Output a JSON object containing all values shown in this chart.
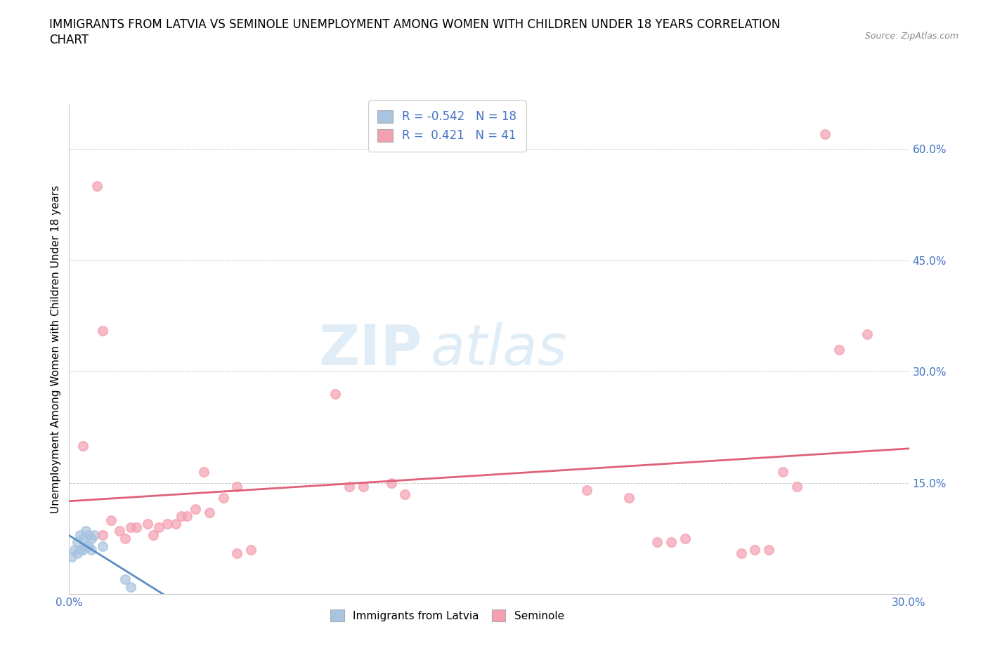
{
  "title_line1": "IMMIGRANTS FROM LATVIA VS SEMINOLE UNEMPLOYMENT AMONG WOMEN WITH CHILDREN UNDER 18 YEARS CORRELATION",
  "title_line2": "CHART",
  "source": "Source: ZipAtlas.com",
  "ylabel": "Unemployment Among Women with Children Under 18 years",
  "watermark": "ZIPatlas",
  "xlim": [
    0.0,
    0.3
  ],
  "ylim": [
    0.0,
    0.66
  ],
  "yticks_right": [
    0.15,
    0.3,
    0.45,
    0.6
  ],
  "ytick_right_labels": [
    "15.0%",
    "30.0%",
    "45.0%",
    "60.0%"
  ],
  "latvia_color": "#a8c4e0",
  "seminole_color": "#f4a0b0",
  "latvia_line_color": "#5b8ec4",
  "seminole_line_color": "#e0607a",
  "legend_R_color": "#4472c4",
  "latvia_R": -0.542,
  "latvia_N": 18,
  "seminole_R": 0.421,
  "seminole_N": 41,
  "latvia_points_x": [
    0.001,
    0.002,
    0.003,
    0.003,
    0.004,
    0.004,
    0.005,
    0.005,
    0.006,
    0.006,
    0.007,
    0.007,
    0.008,
    0.008,
    0.009,
    0.012,
    0.02,
    0.022
  ],
  "latvia_points_y": [
    0.05,
    0.06,
    0.055,
    0.07,
    0.06,
    0.08,
    0.06,
    0.075,
    0.065,
    0.085,
    0.065,
    0.08,
    0.06,
    0.075,
    0.08,
    0.065,
    0.02,
    0.01
  ],
  "seminole_points_x": [
    0.005,
    0.01,
    0.012,
    0.012,
    0.015,
    0.018,
    0.02,
    0.022,
    0.024,
    0.028,
    0.03,
    0.032,
    0.035,
    0.038,
    0.04,
    0.042,
    0.045,
    0.048,
    0.05,
    0.055,
    0.06,
    0.06,
    0.065,
    0.095,
    0.1,
    0.105,
    0.115,
    0.12,
    0.185,
    0.2,
    0.21,
    0.215,
    0.22,
    0.24,
    0.245,
    0.25,
    0.255,
    0.26,
    0.27,
    0.275,
    0.285
  ],
  "seminole_points_y": [
    0.2,
    0.55,
    0.355,
    0.08,
    0.1,
    0.085,
    0.075,
    0.09,
    0.09,
    0.095,
    0.08,
    0.09,
    0.095,
    0.095,
    0.105,
    0.105,
    0.115,
    0.165,
    0.11,
    0.13,
    0.055,
    0.145,
    0.06,
    0.27,
    0.145,
    0.145,
    0.15,
    0.135,
    0.14,
    0.13,
    0.07,
    0.07,
    0.075,
    0.055,
    0.06,
    0.06,
    0.165,
    0.145,
    0.62,
    0.33,
    0.35
  ],
  "background_color": "#ffffff",
  "grid_color": "#cccccc",
  "title_fontsize": 12,
  "axis_label_fontsize": 11,
  "tick_fontsize": 11,
  "marker_size": 90
}
